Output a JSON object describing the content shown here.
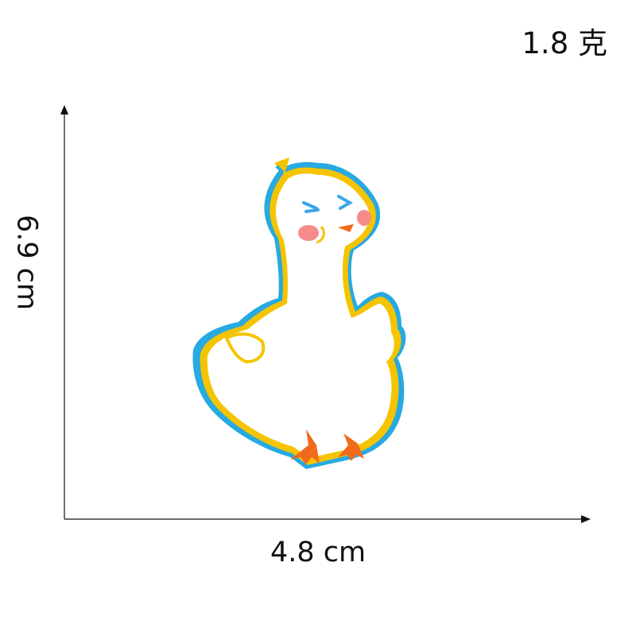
{
  "weight_label": "1.8 克",
  "width_label": "4.8 cm",
  "height_label": "6.9 cm",
  "colors": {
    "text": "#111111",
    "outline_yellow": "#f5c400",
    "outline_blue": "#27a9e1",
    "body_white": "#ffffff",
    "feet_orange": "#f26a1b",
    "cheek_pink": "#f58b8b",
    "eye_blue": "#39a6e8"
  },
  "icons": [
    "duck-patch-icon"
  ]
}
